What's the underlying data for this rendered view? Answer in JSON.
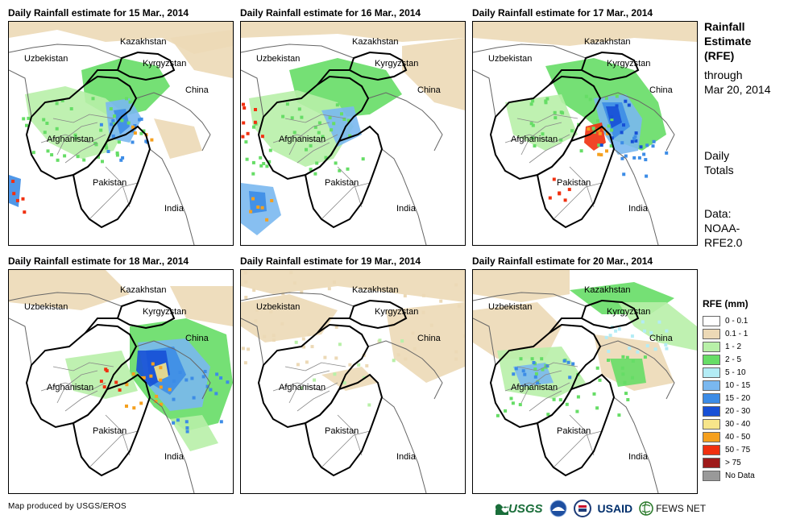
{
  "panels": [
    {
      "title": "Daily Rainfall estimate for 15 Mar., 2014"
    },
    {
      "title": "Daily Rainfall estimate for 16 Mar., 2014"
    },
    {
      "title": "Daily Rainfall estimate for 17 Mar., 2014"
    },
    {
      "title": "Daily Rainfall estimate for 18 Mar., 2014"
    },
    {
      "title": "Daily Rainfall estimate for 19 Mar., 2014"
    },
    {
      "title": "Daily Rainfall estimate for 20 Mar., 2014"
    }
  ],
  "map_labels": {
    "kazakhstan": "Kazakhstan",
    "uzbekistan": "Uzbekistan",
    "kyrgyzstan": "Kyrgyzstan",
    "china": "China",
    "afghanistan": "Afghanistan",
    "pakistan": "Pakistan",
    "india": "India"
  },
  "side": {
    "title_line1": "Rainfall",
    "title_line2": "Estimate",
    "title_line3": "(RFE)",
    "through_line1": "through",
    "through_line2": "Mar 20, 2014",
    "daily_line1": "Daily",
    "daily_line2": "Totals",
    "data_line1": "Data:",
    "data_line2": "NOAA-",
    "data_line3": "RFE2.0"
  },
  "legend": {
    "title": "RFE (mm)",
    "items": [
      {
        "label": "0 - 0.1",
        "color": "#ffffff"
      },
      {
        "label": "0.1 - 1",
        "color": "#ecd9b6"
      },
      {
        "label": "1 - 2",
        "color": "#b8f0a8"
      },
      {
        "label": "2 - 5",
        "color": "#66dd66"
      },
      {
        "label": "5 - 10",
        "color": "#b3ecf5"
      },
      {
        "label": "10 - 15",
        "color": "#7ab8f0"
      },
      {
        "label": "15 - 20",
        "color": "#3c8ce6"
      },
      {
        "label": "20 - 30",
        "color": "#1750d6"
      },
      {
        "label": "30 - 40",
        "color": "#f7e58a"
      },
      {
        "label": "40 - 50",
        "color": "#f5a01e"
      },
      {
        "label": "50 - 75",
        "color": "#f03010"
      },
      {
        "label": "> 75",
        "color": "#9e1a1a"
      },
      {
        "label": "No Data",
        "color": "#999999"
      }
    ]
  },
  "credit": "Map produced by USGS/EROS",
  "logos": {
    "usgs": "USGS",
    "usaid": "USAID",
    "fews": "FEWS NET"
  },
  "icons": [
    "usgs-logo-icon",
    "noaa-logo-icon",
    "dhs-seal-icon",
    "usaid-logo-icon",
    "fewsnet-globe-icon"
  ]
}
